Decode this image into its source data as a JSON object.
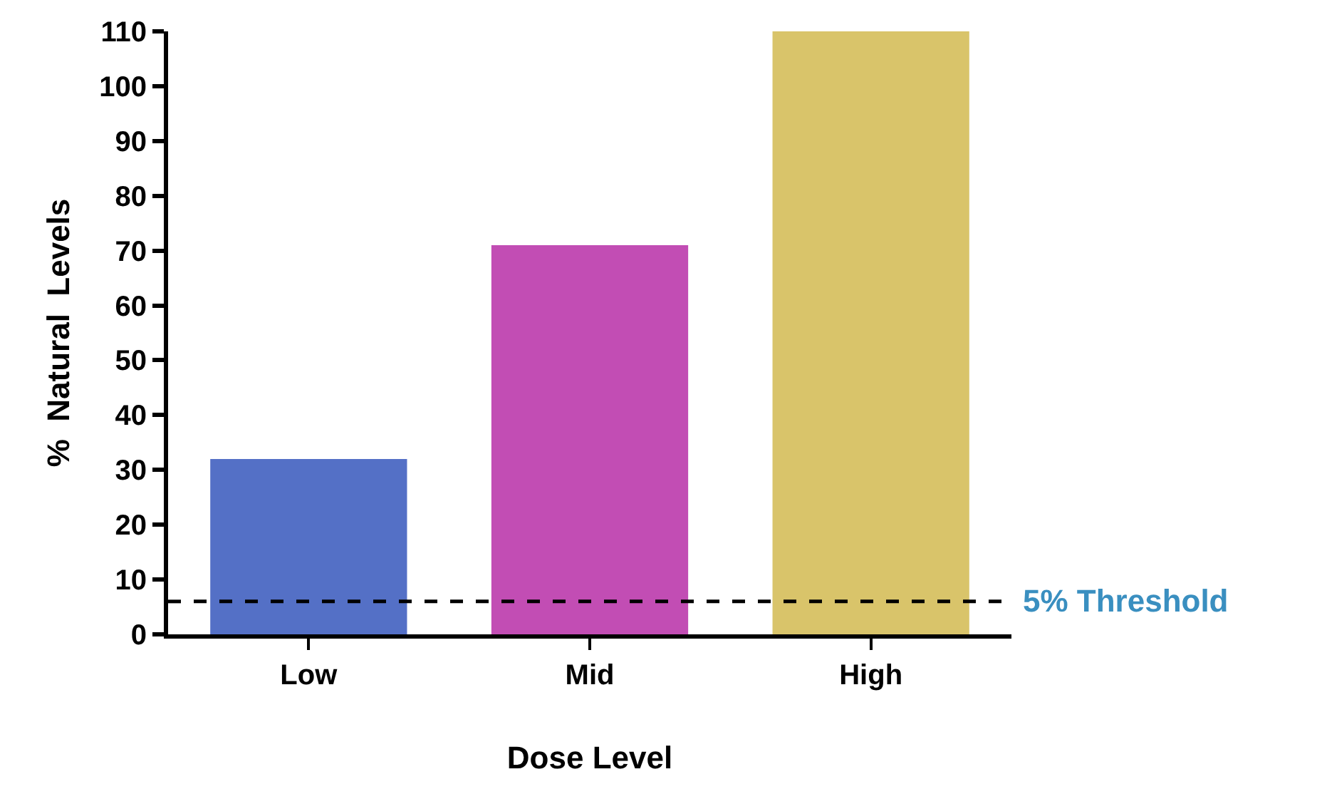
{
  "chart_data": {
    "type": "bar",
    "xlabel": "Dose Level",
    "ylabel": "%  Natural  Levels",
    "categories": [
      "Low",
      "Mid",
      "High"
    ],
    "values": [
      32,
      71,
      110
    ],
    "colors": [
      "#5470c6",
      "#c24db4",
      "#d9c46a"
    ],
    "ylim": [
      0,
      110
    ],
    "yticks": [
      0,
      10,
      20,
      30,
      40,
      50,
      60,
      70,
      80,
      90,
      100,
      110
    ],
    "ref_lines": [
      {
        "axis": "y",
        "value": 6,
        "label": "5% Threshold",
        "color": "#000000",
        "line_style": "dashed"
      }
    ]
  }
}
